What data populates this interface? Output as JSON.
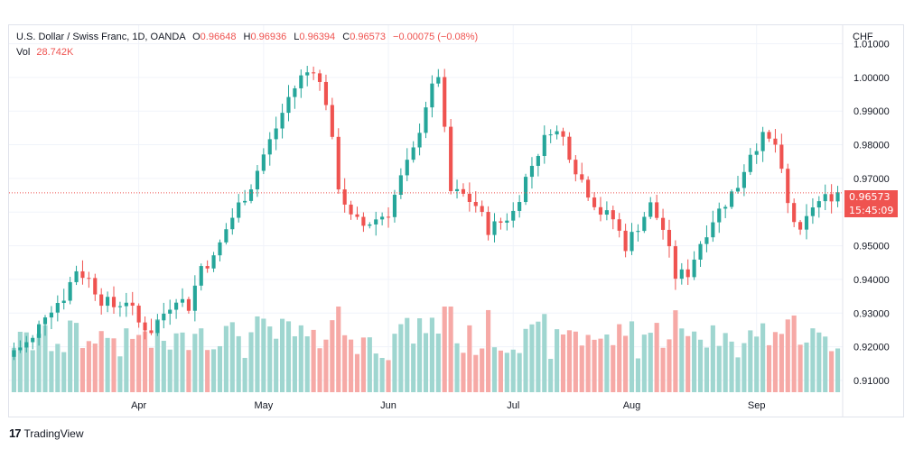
{
  "legend": {
    "symbol": "U.S. Dollar / Swiss Franc, 1D, OANDA",
    "o_label": "O",
    "o_value": "0.96648",
    "h_label": "H",
    "h_value": "0.96936",
    "l_label": "L",
    "l_value": "0.96394",
    "c_label": "C",
    "c_value": "0.96573",
    "change": "−0.00075 (−0.08%)",
    "vol_label": "Vol",
    "vol_value": "28.742K"
  },
  "price_axis": {
    "currency": "CHF"
  },
  "last_price": {
    "value": "0.96573",
    "countdown": "15:45:09"
  },
  "branding": {
    "logo": "17",
    "name": "TradingView"
  },
  "colors": {
    "up": "#26a69a",
    "down": "#ef5350",
    "vol_up": "#9fd6d0",
    "vol_down": "#f6a9a6",
    "grid": "#f0f3fa"
  },
  "chart_data": {
    "type": "candlestick",
    "y_ticks": [
      "1.01000",
      "1.00000",
      "0.99000",
      "0.98000",
      "0.97000",
      "0.96000",
      "0.95000",
      "0.94000",
      "0.93000",
      "0.92000",
      "0.91000"
    ],
    "ylim": [
      0.9065,
      1.0155
    ],
    "x_labels": [
      "Apr",
      "May",
      "Jun",
      "Jul",
      "Aug",
      "Sep"
    ],
    "x_label_index": [
      20,
      40,
      60,
      80,
      99,
      119
    ],
    "close_path": [
      [
        0,
        0.919
      ],
      [
        3,
        0.922
      ],
      [
        5,
        0.93
      ],
      [
        8,
        0.935
      ],
      [
        10,
        0.943
      ],
      [
        12,
        0.94
      ],
      [
        14,
        0.934
      ],
      [
        16,
        0.932
      ],
      [
        18,
        0.934
      ],
      [
        20,
        0.927
      ],
      [
        22,
        0.925
      ],
      [
        24,
        0.93
      ],
      [
        26,
        0.935
      ],
      [
        28,
        0.932
      ],
      [
        30,
        0.944
      ],
      [
        32,
        0.946
      ],
      [
        34,
        0.955
      ],
      [
        36,
        0.962
      ],
      [
        38,
        0.968
      ],
      [
        40,
        0.977
      ],
      [
        42,
        0.985
      ],
      [
        44,
        0.994
      ],
      [
        46,
        1.0
      ],
      [
        48,
        1.003
      ],
      [
        50,
        0.993
      ],
      [
        52,
        0.968
      ],
      [
        54,
        0.958
      ],
      [
        56,
        0.956
      ],
      [
        58,
        0.958
      ],
      [
        60,
        0.96
      ],
      [
        62,
        0.97
      ],
      [
        64,
        0.978
      ],
      [
        66,
        0.992
      ],
      [
        68,
        1.001
      ],
      [
        70,
        0.966
      ],
      [
        72,
        0.965
      ],
      [
        74,
        0.962
      ],
      [
        76,
        0.955
      ],
      [
        78,
        0.957
      ],
      [
        80,
        0.96
      ],
      [
        82,
        0.97
      ],
      [
        84,
        0.978
      ],
      [
        86,
        0.985
      ],
      [
        88,
        0.982
      ],
      [
        90,
        0.973
      ],
      [
        92,
        0.966
      ],
      [
        94,
        0.96
      ],
      [
        96,
        0.958
      ],
      [
        98,
        0.95
      ],
      [
        100,
        0.956
      ],
      [
        102,
        0.962
      ],
      [
        104,
        0.955
      ],
      [
        106,
        0.941
      ],
      [
        108,
        0.942
      ],
      [
        110,
        0.951
      ],
      [
        112,
        0.958
      ],
      [
        114,
        0.963
      ],
      [
        116,
        0.968
      ],
      [
        118,
        0.978
      ],
      [
        120,
        0.982
      ],
      [
        122,
        0.98
      ],
      [
        124,
        0.962
      ],
      [
        126,
        0.953
      ],
      [
        128,
        0.962
      ],
      [
        130,
        0.964
      ],
      [
        132,
        0.966
      ]
    ],
    "volume_ylim": [
      0,
      50
    ]
  }
}
